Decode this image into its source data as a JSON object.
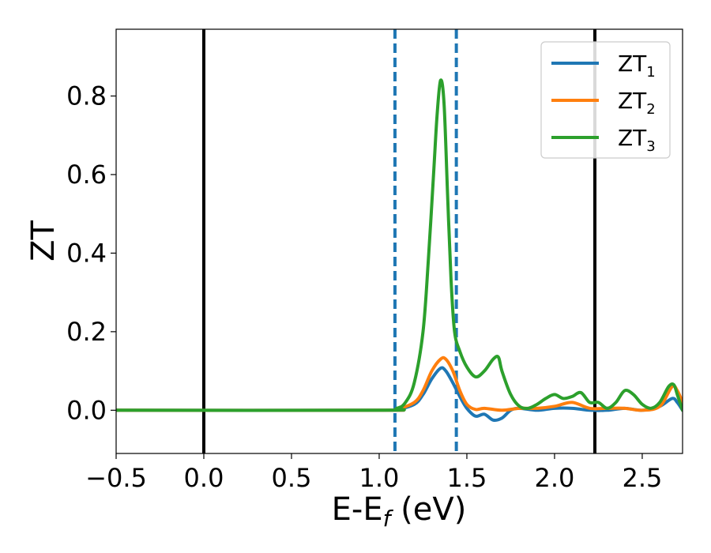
{
  "chart_data": {
    "type": "line",
    "xlabel": "E-E",
    "xlabel_sub": "f",
    "xlabel_unit": " (eV)",
    "ylabel": "ZT",
    "xlim": [
      -0.5,
      2.73
    ],
    "ylim": [
      -0.11,
      0.97
    ],
    "xticks": [
      -0.5,
      0.0,
      0.5,
      1.0,
      1.5,
      2.0,
      2.5
    ],
    "xtick_labels": [
      "−0.5",
      "0.0",
      "0.5",
      "1.0",
      "1.5",
      "2.0",
      "2.5"
    ],
    "yticks": [
      0.0,
      0.2,
      0.4,
      0.6,
      0.8
    ],
    "ytick_labels": [
      "0.0",
      "0.2",
      "0.4",
      "0.6",
      "0.8"
    ],
    "grid": false,
    "legend_position": "top-right",
    "vertical_lines": [
      {
        "x": 0.0,
        "style": "solid",
        "color": "#000000"
      },
      {
        "x": 2.23,
        "style": "solid",
        "color": "#000000"
      },
      {
        "x": 1.09,
        "style": "dashed",
        "color": "#1f77b4"
      },
      {
        "x": 1.44,
        "style": "dashed",
        "color": "#1f77b4"
      }
    ],
    "series": [
      {
        "name": "ZT",
        "name_sub": "1",
        "color": "#1f77b4",
        "x": [
          -0.5,
          1.0,
          1.1,
          1.2,
          1.25,
          1.3,
          1.35,
          1.38,
          1.42,
          1.46,
          1.5,
          1.55,
          1.6,
          1.65,
          1.7,
          1.75,
          1.8,
          1.9,
          2.0,
          2.1,
          2.2,
          2.3,
          2.4,
          2.5,
          2.6,
          2.67,
          2.7,
          2.73
        ],
        "y": [
          0.0,
          0.0,
          0.002,
          0.015,
          0.04,
          0.08,
          0.107,
          0.1,
          0.07,
          0.035,
          0.005,
          -0.015,
          -0.01,
          -0.025,
          -0.02,
          0.0,
          0.005,
          0.0,
          0.005,
          0.005,
          0.0,
          0.0,
          0.005,
          0.0,
          0.01,
          0.03,
          0.02,
          0.0
        ]
      },
      {
        "name": "ZT",
        "name_sub": "2",
        "color": "#ff7f0e",
        "x": [
          -0.5,
          1.0,
          1.1,
          1.2,
          1.25,
          1.3,
          1.35,
          1.38,
          1.42,
          1.46,
          1.5,
          1.55,
          1.6,
          1.7,
          1.8,
          1.9,
          2.0,
          2.1,
          2.2,
          2.3,
          2.4,
          2.5,
          2.6,
          2.67,
          2.7,
          2.73
        ],
        "y": [
          0.0,
          0.0,
          0.003,
          0.02,
          0.05,
          0.1,
          0.13,
          0.13,
          0.1,
          0.05,
          0.015,
          0.002,
          0.005,
          0.0,
          0.005,
          0.005,
          0.01,
          0.02,
          0.005,
          0.005,
          0.005,
          0.0,
          0.01,
          0.06,
          0.05,
          0.02
        ]
      },
      {
        "name": "ZT",
        "name_sub": "3",
        "color": "#2ca02c",
        "x": [
          -0.5,
          1.0,
          1.1,
          1.15,
          1.2,
          1.25,
          1.28,
          1.31,
          1.33,
          1.35,
          1.37,
          1.39,
          1.41,
          1.43,
          1.46,
          1.5,
          1.55,
          1.6,
          1.65,
          1.68,
          1.7,
          1.75,
          1.8,
          1.85,
          1.9,
          1.95,
          2.0,
          2.05,
          2.1,
          2.15,
          2.2,
          2.25,
          2.3,
          2.35,
          2.4,
          2.45,
          2.5,
          2.55,
          2.6,
          2.65,
          2.68,
          2.7,
          2.73
        ],
        "y": [
          0.0,
          0.0,
          0.005,
          0.02,
          0.07,
          0.2,
          0.38,
          0.6,
          0.75,
          0.84,
          0.78,
          0.55,
          0.33,
          0.2,
          0.15,
          0.11,
          0.085,
          0.1,
          0.13,
          0.135,
          0.1,
          0.04,
          0.01,
          0.005,
          0.015,
          0.03,
          0.04,
          0.03,
          0.035,
          0.045,
          0.02,
          0.02,
          0.005,
          0.02,
          0.05,
          0.04,
          0.015,
          0.005,
          0.02,
          0.06,
          0.065,
          0.04,
          0.0
        ]
      }
    ]
  }
}
